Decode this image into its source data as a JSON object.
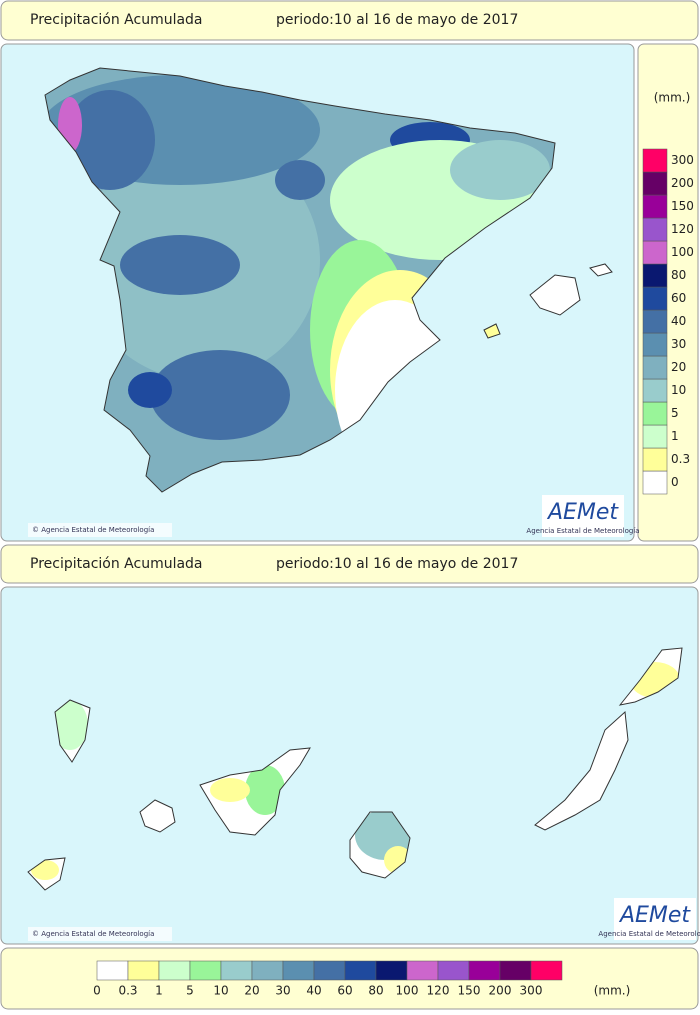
{
  "panels": [
    {
      "title": "Precipitación Acumulada",
      "period": "periodo:10 al 16 de mayo de 2017",
      "credit": "© Agencia Estatal de Meteorología",
      "logo": "AEMet",
      "logo_sub": "Agencia Estatal de Meteorología"
    },
    {
      "title": "Precipitación Acumulada",
      "period": "periodo:10 al 16 de mayo de 2017",
      "credit": "© Agencia Estatal de Meteorología",
      "logo": "AEMet",
      "logo_sub": "Agencia Estatal de Meteorología"
    }
  ],
  "legend": {
    "unit": "(mm.)",
    "items": [
      {
        "label": "0",
        "color": "#ffffff"
      },
      {
        "label": "0.3",
        "color": "#ffff99"
      },
      {
        "label": "1",
        "color": "#ccffcc"
      },
      {
        "label": "5",
        "color": "#99f599"
      },
      {
        "label": "10",
        "color": "#99cccc"
      },
      {
        "label": "20",
        "color": "#7fb0bf"
      },
      {
        "label": "30",
        "color": "#5b8fb0"
      },
      {
        "label": "40",
        "color": "#4470a5"
      },
      {
        "label": "60",
        "color": "#1f4a9e"
      },
      {
        "label": "80",
        "color": "#0a1870"
      },
      {
        "label": "100",
        "color": "#cc66cc"
      },
      {
        "label": "120",
        "color": "#9955cc"
      },
      {
        "label": "150",
        "color": "#990099"
      },
      {
        "label": "200",
        "color": "#660066"
      },
      {
        "label": "300",
        "color": "#ff0066"
      }
    ]
  }
}
